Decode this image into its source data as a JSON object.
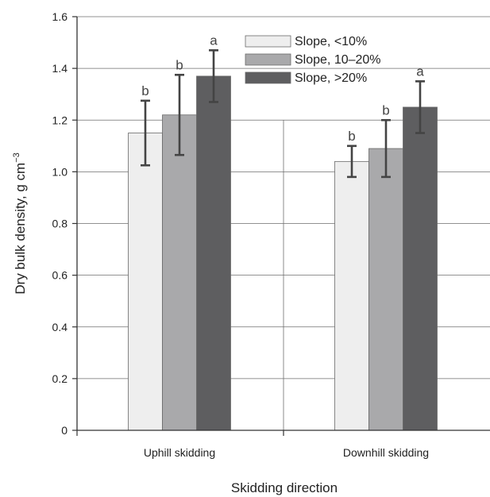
{
  "chart_data": {
    "type": "bar",
    "title": "",
    "xlabel": "Skidding direction",
    "ylabel": "Dry bulk density, g cm",
    "ylabel_superscript": "−3",
    "ylim": [
      0,
      1.6
    ],
    "yticks": [
      0,
      0.2,
      0.4,
      0.6,
      0.8,
      1.0,
      1.2,
      1.4,
      1.6
    ],
    "ytick_labels": [
      "0",
      "0.2",
      "0.4",
      "0.6",
      "0.8",
      "1.0",
      "1.2",
      "1.4",
      "1.6"
    ],
    "grid": true,
    "legend_position": "top-center",
    "categories": [
      "Uphill skidding",
      "Downhill skidding"
    ],
    "series": [
      {
        "name": "Slope, <10%",
        "color": "#eeeeee",
        "values": [
          1.15,
          1.04
        ],
        "errors": [
          0.125,
          0.06
        ],
        "significance": [
          "b",
          "b"
        ]
      },
      {
        "name": "Slope, 10–20%",
        "color": "#a9a9ab",
        "values": [
          1.22,
          1.09
        ],
        "errors": [
          0.155,
          0.11
        ],
        "significance": [
          "b",
          "b"
        ]
      },
      {
        "name": "Slope, >20%",
        "color": "#5e5e60",
        "values": [
          1.37,
          1.25
        ],
        "errors": [
          0.1,
          0.1
        ],
        "significance": [
          "a",
          "a"
        ]
      }
    ]
  }
}
